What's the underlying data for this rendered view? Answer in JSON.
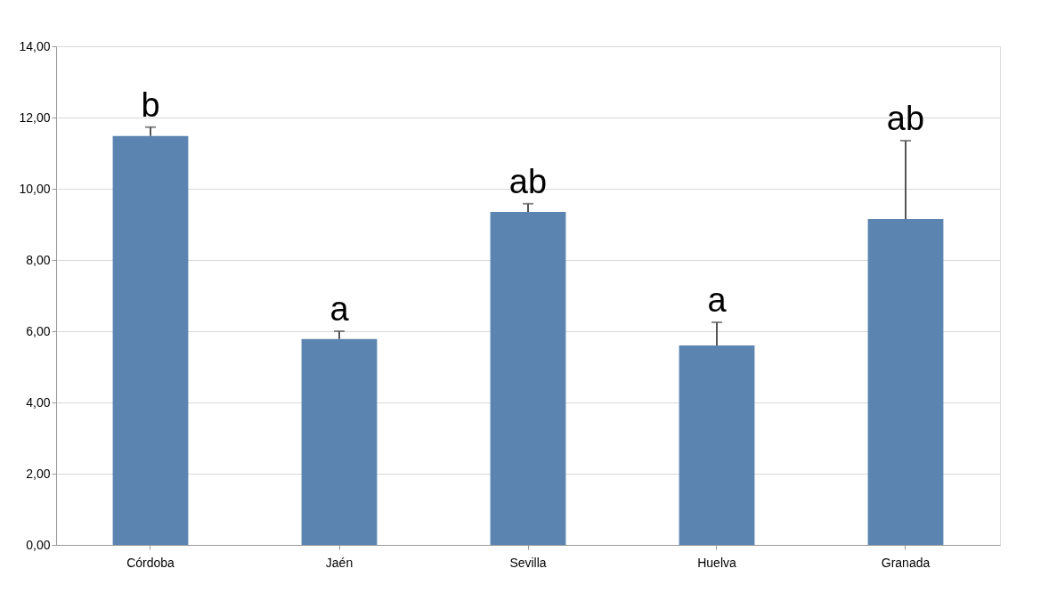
{
  "chart_data": {
    "type": "bar",
    "categories": [
      "Córdoba",
      "Jaén",
      "Sevilla",
      "Huelva",
      "Granada"
    ],
    "values": [
      11.48,
      5.78,
      9.35,
      5.6,
      9.15
    ],
    "errors": [
      [
        11.48,
        11.73
      ],
      [
        5.78,
        6.0
      ],
      [
        9.35,
        9.58
      ],
      [
        5.6,
        6.25
      ],
      [
        9.15,
        11.35
      ]
    ],
    "color": "#5b84b1",
    "ylim": [
      0,
      14
    ],
    "yticks": [
      {
        "value": 0,
        "label": "0,00"
      },
      {
        "value": 2,
        "label": "2,00"
      },
      {
        "value": 4,
        "label": "4,00"
      },
      {
        "value": 6,
        "label": "6,00"
      },
      {
        "value": 8,
        "label": "8,00"
      },
      {
        "value": 10,
        "label": "10,00"
      },
      {
        "value": 12,
        "label": "12,00"
      },
      {
        "value": 14,
        "label": "14,00"
      }
    ],
    "grid": "y",
    "annotations": [
      {
        "text": "b",
        "x": "Córdoba",
        "y": 11.73
      },
      {
        "text": "a",
        "x": "Jaén",
        "y": 6.0
      },
      {
        "text": "ab",
        "x": "Sevilla",
        "y": 9.58
      },
      {
        "text": "a",
        "x": "Huelva",
        "y": 6.25
      },
      {
        "text": "ab",
        "x": "Granada",
        "y": 11.35
      }
    ]
  }
}
